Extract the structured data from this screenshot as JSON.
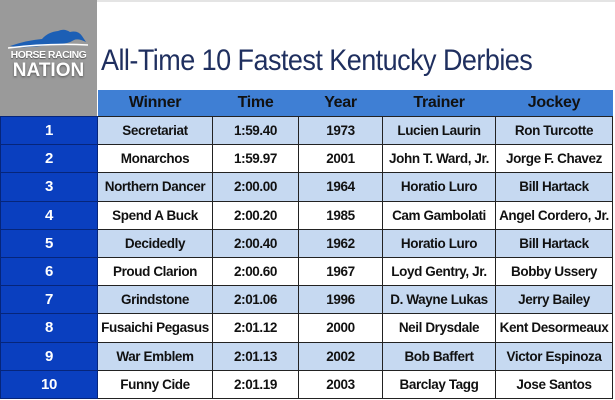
{
  "logo": {
    "line1": "HORSE RACING",
    "line2": "NATION"
  },
  "title": "All-Time 10 Fastest Kentucky Derbies",
  "columns": [
    "Winner",
    "Time",
    "Year",
    "Trainer",
    "Jockey"
  ],
  "colors": {
    "header": "#3f7fd4",
    "rank_column": "#0a3fbf",
    "row_alt": "#c6d9f1",
    "title": "#1f2f5f",
    "logo_bg": "#9a9a9a"
  },
  "rows": [
    {
      "rank": "1",
      "winner": "Secretariat",
      "time": "1:59.40",
      "year": "1973",
      "trainer": "Lucien Laurin",
      "jockey": "Ron Turcotte"
    },
    {
      "rank": "2",
      "winner": "Monarchos",
      "time": "1:59.97",
      "year": "2001",
      "trainer": "John T. Ward, Jr.",
      "jockey": "Jorge F. Chavez"
    },
    {
      "rank": "3",
      "winner": "Northern Dancer",
      "time": "2:00.00",
      "year": "1964",
      "trainer": "Horatio Luro",
      "jockey": "Bill Hartack"
    },
    {
      "rank": "4",
      "winner": "Spend A Buck",
      "time": "2:00.20",
      "year": "1985",
      "trainer": "Cam Gambolati",
      "jockey": "Angel Cordero, Jr."
    },
    {
      "rank": "5",
      "winner": "Decidedly",
      "time": "2:00.40",
      "year": "1962",
      "trainer": "Horatio Luro",
      "jockey": "Bill Hartack"
    },
    {
      "rank": "6",
      "winner": "Proud Clarion",
      "time": "2:00.60",
      "year": "1967",
      "trainer": "Loyd Gentry, Jr.",
      "jockey": "Bobby Ussery"
    },
    {
      "rank": "7",
      "winner": "Grindstone",
      "time": "2:01.06",
      "year": "1996",
      "trainer": "D. Wayne Lukas",
      "jockey": "Jerry Bailey"
    },
    {
      "rank": "8",
      "winner": "Fusaichi Pegasus",
      "time": "2:01.12",
      "year": "2000",
      "trainer": "Neil Drysdale",
      "jockey": "Kent Desormeaux"
    },
    {
      "rank": "9",
      "winner": "War Emblem",
      "time": "2:01.13",
      "year": "2002",
      "trainer": "Bob Baffert",
      "jockey": "Victor Espinoza"
    },
    {
      "rank": "10",
      "winner": "Funny Cide",
      "time": "2:01.19",
      "year": "2003",
      "trainer": "Barclay Tagg",
      "jockey": "Jose Santos"
    }
  ]
}
